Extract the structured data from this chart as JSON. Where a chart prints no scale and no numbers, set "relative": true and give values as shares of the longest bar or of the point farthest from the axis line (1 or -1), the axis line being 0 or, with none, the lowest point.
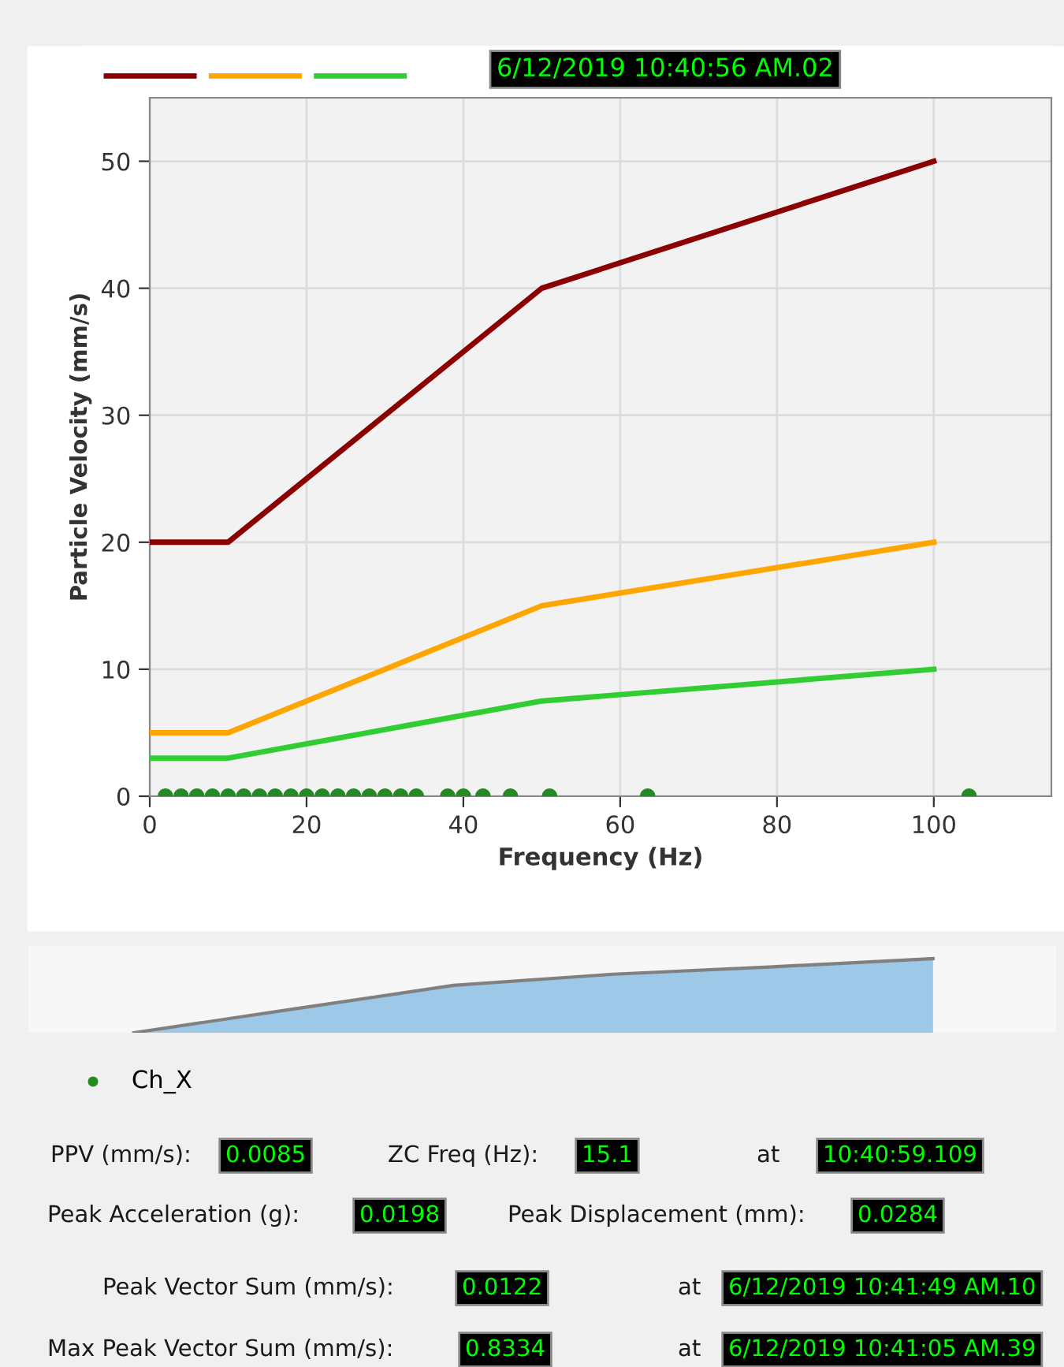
{
  "chart_data": [
    {
      "type": "line",
      "xlabel": "Frequency (Hz)",
      "ylabel": "Particle Velocity (mm/s)",
      "xlim": [
        0,
        115
      ],
      "ylim": [
        0,
        55
      ],
      "xticks": [
        0,
        20,
        40,
        60,
        80,
        100
      ],
      "yticks": [
        0,
        10,
        20,
        30,
        40,
        50
      ],
      "grid": true,
      "legend": "bottom left",
      "marker": "none",
      "line_style": "solid",
      "series": [
        {
          "color": "#8b0000",
          "x": [
            0,
            10,
            50,
            100
          ],
          "values": [
            20,
            20,
            40,
            50
          ]
        },
        {
          "color": "#ffa500",
          "x": [
            0,
            10,
            50,
            100
          ],
          "values": [
            5,
            5,
            15,
            20
          ]
        },
        {
          "color": "#32cd32",
          "x": [
            0,
            10,
            50,
            100
          ],
          "values": [
            3,
            3,
            7.5,
            10
          ]
        },
        {
          "type": "scatter",
          "name": "Ch_X",
          "color": "#228b22",
          "marker": "circle",
          "x": [
            2,
            4,
            6,
            8,
            10,
            12,
            14,
            16,
            18,
            20,
            22,
            24,
            26,
            28,
            30,
            32,
            34,
            38,
            40,
            42.5,
            46,
            51,
            63.5,
            104.5
          ],
          "values": [
            0,
            0,
            0,
            0,
            0,
            0,
            0,
            0,
            0,
            0,
            0,
            0,
            0,
            0,
            0,
            0,
            0,
            0,
            0,
            0,
            0,
            0,
            0,
            0
          ]
        }
      ],
      "annotations": [
        "6/12/2019 10:40:56 AM.02",
        "PPV (mm/s):",
        "0.0085",
        "ZC Freq (Hz):",
        "15.1",
        "at",
        "10:40:59.109",
        "Peak Acceleration (g):",
        "0.0198",
        "Peak Displacement (mm):",
        "0.0284",
        "Peak Vector Sum (mm/s):",
        "0.0122",
        "at",
        "6/12/2019 10:41:49 AM.10",
        "Max Peak Vector Sum (mm/s):",
        "0.8334",
        "at",
        "6/12/2019 10:41:05 AM.39"
      ]
    },
    {
      "type": "area",
      "relative": true,
      "categories": [
        null,
        null,
        null,
        null,
        null,
        null
      ],
      "tick_labels": false,
      "series": [
        {
          "color": "#9dc8e8",
          "values": [
            0,
            0.32,
            0.64,
            0.79,
            0.89,
            1
          ]
        }
      ]
    }
  ]
}
